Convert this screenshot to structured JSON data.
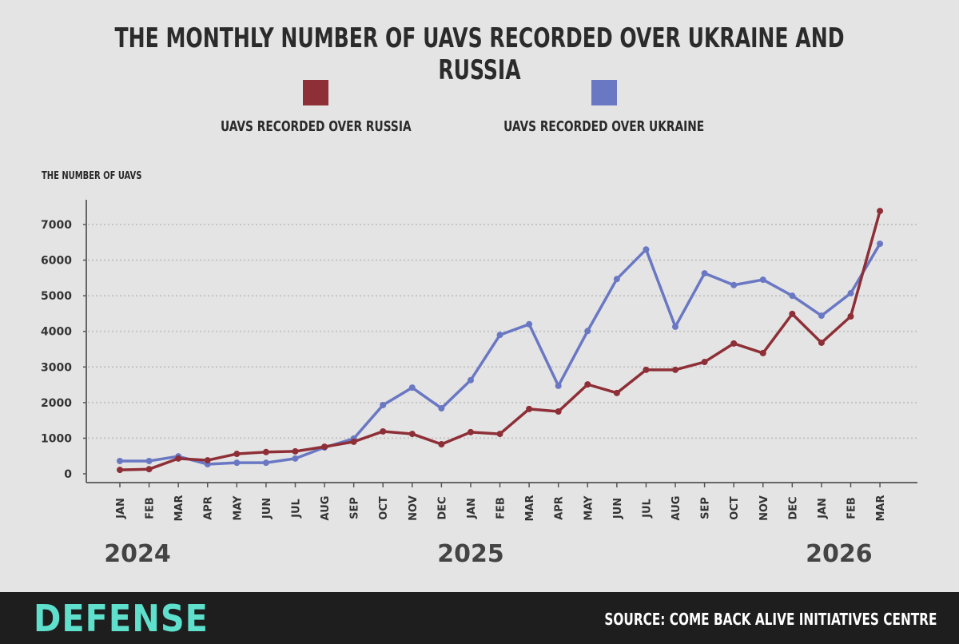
{
  "chart_data": {
    "type": "line",
    "title": "THE MONTHLY NUMBER OF UAVS RECORDED OVER UKRAINE AND RUSSIA",
    "ylabel": "THE NUMBER OF UAVS",
    "ylim": [
      0,
      7000
    ],
    "yticks": [
      0,
      1000,
      2000,
      3000,
      4000,
      5000,
      6000,
      7000
    ],
    "grid": true,
    "legend_placement": "top",
    "categories": [
      "JAN",
      "FEB",
      "MAR",
      "APR",
      "MAY",
      "JUN",
      "JUL",
      "AUG",
      "SEP",
      "OCT",
      "NOV",
      "DEC",
      "JAN",
      "FEB",
      "MAR",
      "APR",
      "MAY",
      "JUN",
      "JUL",
      "AUG",
      "SEP",
      "OCT",
      "NOV",
      "DEC",
      "JAN",
      "FEB",
      "MAR"
    ],
    "year_labels": [
      {
        "label": "2024",
        "index": 0
      },
      {
        "label": "2025",
        "index": 12
      },
      {
        "label": "2026",
        "index": 24
      }
    ],
    "series": [
      {
        "name": "UAVS RECORDED OVER RUSSIA",
        "color": "#8e2f37",
        "values": [
          110,
          130,
          430,
          380,
          560,
          610,
          630,
          760,
          900,
          1190,
          1120,
          830,
          1170,
          1120,
          1820,
          1750,
          2510,
          2270,
          2920,
          2920,
          3140,
          3660,
          3390,
          4490,
          3680,
          4420,
          7380
        ]
      },
      {
        "name": "UAVS RECORDED OVER UKRAINE",
        "color": "#6a78c4",
        "values": [
          360,
          360,
          490,
          270,
          310,
          310,
          430,
          740,
          990,
          1930,
          2420,
          1840,
          2630,
          3900,
          4200,
          2470,
          4010,
          5470,
          6300,
          4130,
          5630,
          5300,
          5450,
          5000,
          4440,
          5070,
          6460
        ]
      }
    ]
  },
  "footer": {
    "logo": "DEFENSE",
    "source": "SOURCE: COME BACK ALIVE INITIATIVES CENTRE"
  }
}
